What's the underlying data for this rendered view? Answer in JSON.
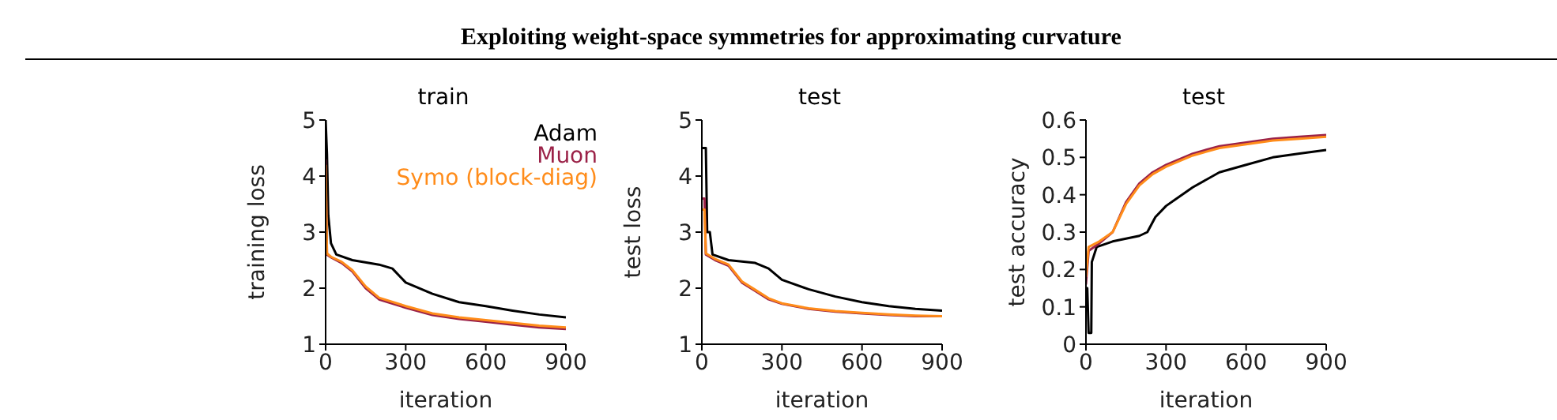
{
  "chart_data": [
    {
      "type": "line",
      "title": "train",
      "xlabel": "iteration",
      "ylabel": "training loss",
      "annotations": [
        "Exploiting weight-space symmetries for approximating curvature"
      ],
      "xlim": [
        0,
        900
      ],
      "xticks": [
        0,
        300,
        600,
        900
      ],
      "ylim": [
        1,
        5
      ],
      "yticks": [
        1,
        2,
        3,
        4,
        5
      ],
      "grid": false,
      "legend": "top right",
      "marker": "none",
      "line_style": "solid",
      "series": [
        {
          "name": "Adam",
          "color": "#000000",
          "x": [
            0,
            5,
            10,
            20,
            40,
            100,
            200,
            250,
            300,
            400,
            500,
            600,
            700,
            800,
            900
          ],
          "values": [
            5,
            4.4,
            3.3,
            2.8,
            2.6,
            2.5,
            2.42,
            2.35,
            2.1,
            1.9,
            1.75,
            1.68,
            1.6,
            1.53,
            1.48
          ]
        },
        {
          "name": "Muon",
          "color": "#9b2248",
          "x": [
            0,
            5,
            20,
            60,
            100,
            150,
            200,
            300,
            400,
            500,
            600,
            700,
            800,
            900
          ],
          "values": [
            4.3,
            2.6,
            2.55,
            2.45,
            2.3,
            2,
            1.8,
            1.65,
            1.52,
            1.45,
            1.4,
            1.35,
            1.3,
            1.27
          ]
        },
        {
          "name": "Symo (block-diag)",
          "color": "#ff8c1a",
          "x": [
            0,
            5,
            20,
            60,
            100,
            150,
            200,
            300,
            400,
            500,
            600,
            700,
            800,
            900
          ],
          "values": [
            4.2,
            2.62,
            2.56,
            2.47,
            2.32,
            2.03,
            1.83,
            1.68,
            1.55,
            1.48,
            1.43,
            1.38,
            1.33,
            1.3
          ]
        }
      ]
    },
    {
      "type": "line",
      "title": "test",
      "xlabel": "iteration",
      "ylabel": "test loss",
      "xlim": [
        0,
        900
      ],
      "xticks": [
        0,
        300,
        600,
        900
      ],
      "ylim": [
        1,
        5
      ],
      "yticks": [
        1,
        2,
        3,
        4,
        5
      ],
      "grid": false,
      "marker": "none",
      "line_style": "solid",
      "series": [
        {
          "color": "#000000",
          "x": [
            0,
            15,
            20,
            30,
            40,
            100,
            200,
            250,
            300,
            400,
            500,
            600,
            700,
            800,
            900
          ],
          "values": [
            4.5,
            4.5,
            3,
            3,
            2.6,
            2.5,
            2.45,
            2.35,
            2.15,
            1.98,
            1.85,
            1.75,
            1.68,
            1.63,
            1.6
          ]
        },
        {
          "color": "#9b2248",
          "x": [
            0,
            10,
            15,
            50,
            100,
            150,
            200,
            250,
            300,
            400,
            500,
            600,
            700,
            800,
            900
          ],
          "values": [
            3.6,
            3.6,
            2.6,
            2.5,
            2.4,
            2.1,
            1.95,
            1.8,
            1.72,
            1.63,
            1.58,
            1.55,
            1.52,
            1.5,
            1.5
          ]
        },
        {
          "color": "#ff8c1a",
          "x": [
            0,
            10,
            15,
            50,
            100,
            150,
            200,
            250,
            300,
            400,
            500,
            600,
            700,
            800,
            900
          ],
          "values": [
            3.4,
            3.4,
            2.62,
            2.52,
            2.42,
            2.12,
            1.97,
            1.82,
            1.73,
            1.64,
            1.59,
            1.56,
            1.53,
            1.51,
            1.5
          ]
        }
      ]
    },
    {
      "type": "line",
      "title": "test",
      "xlabel": "iteration",
      "ylabel": "test accuracy",
      "xlim": [
        0,
        900
      ],
      "xticks": [
        0,
        300,
        600,
        900
      ],
      "ylim": [
        0,
        0.6
      ],
      "yticks": [
        0,
        0.1,
        0.2,
        0.3,
        0.4,
        0.5,
        0.6
      ],
      "grid": false,
      "marker": "none",
      "line_style": "solid",
      "series": [
        {
          "color": "#000000",
          "x": [
            0,
            5,
            10,
            20,
            22,
            40,
            100,
            200,
            230,
            260,
            300,
            400,
            500,
            600,
            700,
            800,
            900
          ],
          "values": [
            0.15,
            0.15,
            0.03,
            0.03,
            0.22,
            0.26,
            0.275,
            0.29,
            0.3,
            0.34,
            0.37,
            0.42,
            0.46,
            0.48,
            0.5,
            0.51,
            0.52
          ]
        },
        {
          "color": "#9b2248",
          "x": [
            0,
            10,
            50,
            100,
            150,
            200,
            250,
            300,
            400,
            500,
            600,
            700,
            800,
            900
          ],
          "values": [
            0.16,
            0.25,
            0.27,
            0.3,
            0.38,
            0.43,
            0.46,
            0.48,
            0.51,
            0.53,
            0.54,
            0.55,
            0.555,
            0.56
          ]
        },
        {
          "color": "#ff8c1a",
          "x": [
            0,
            10,
            50,
            100,
            150,
            200,
            250,
            300,
            400,
            500,
            600,
            700,
            800,
            900
          ],
          "values": [
            0.18,
            0.26,
            0.275,
            0.3,
            0.375,
            0.425,
            0.455,
            0.475,
            0.505,
            0.525,
            0.535,
            0.545,
            0.55,
            0.555
          ]
        }
      ]
    }
  ]
}
